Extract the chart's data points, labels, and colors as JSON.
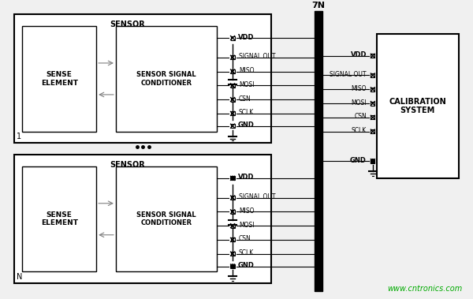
{
  "bg_color": "#f0f0f0",
  "title_color": "#000000",
  "line_color": "#000000",
  "bus_color": "#000000",
  "connector_color": "#000000",
  "text_color": "#000000",
  "watermark_color": "#00aa00",
  "watermark": "www.cntronics.com",
  "sensor_label": "SENSOR",
  "sense_element_label": "SENSE\nELEMENT",
  "conditioner_label": "SENSOR SIGNAL\nCONDITIONER",
  "calibration_label": "CALIBRATION\nSYSTEM",
  "bus_label": "7N",
  "signals": [
    "SIGNAL OUT",
    "MISO",
    "MOSI",
    "CSN",
    "SCLK"
  ],
  "power_top": "VDD",
  "power_bot": "GND",
  "sensor1_number": "1",
  "sensorN_number": "N",
  "fig_width": 6.0,
  "fig_height": 3.79
}
